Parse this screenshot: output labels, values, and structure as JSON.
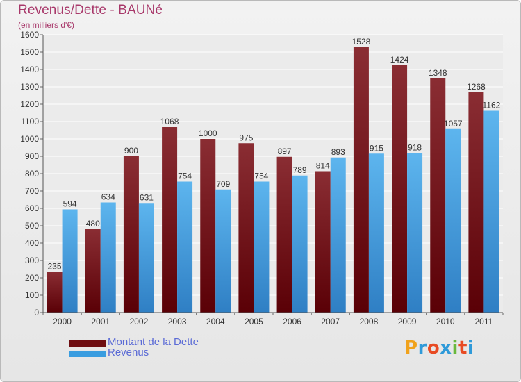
{
  "title": "Revenus/Dette - BAUNé",
  "subtitle": "(en milliers d'€)",
  "colors": {
    "dette": "#6e0e12",
    "revenus": "#3a9de0",
    "title": "#a8386a",
    "legend_text": "#5b6bd6"
  },
  "legend": [
    {
      "label": "Montant de la Dette",
      "color": "#6e0e12"
    },
    {
      "label": "Revenus",
      "color": "#3a9de0"
    }
  ],
  "logo": {
    "letters": [
      "P",
      "r",
      "o",
      "x",
      "i",
      "t",
      "i"
    ],
    "colors": [
      "#f0a21c",
      "#2f9ad9",
      "#e84b24",
      "#2f9ad9",
      "#69b83c",
      "#e84b24",
      "#2f9ad9"
    ]
  },
  "chart_data": {
    "type": "bar",
    "categories": [
      "2000",
      "2001",
      "2002",
      "2003",
      "2004",
      "2005",
      "2006",
      "2007",
      "2008",
      "2009",
      "2010",
      "2011"
    ],
    "series": [
      {
        "name": "Montant de la Dette",
        "values": [
          235,
          480,
          900,
          1068,
          1000,
          975,
          897,
          814,
          1528,
          1424,
          1348,
          1268
        ]
      },
      {
        "name": "Revenus",
        "values": [
          594,
          634,
          631,
          754,
          709,
          754,
          789,
          893,
          915,
          918,
          1057,
          1162
        ]
      }
    ],
    "ylim": [
      0,
      1600
    ],
    "ytick_step": 100,
    "grid": true,
    "legend_position": "bottom-left"
  }
}
